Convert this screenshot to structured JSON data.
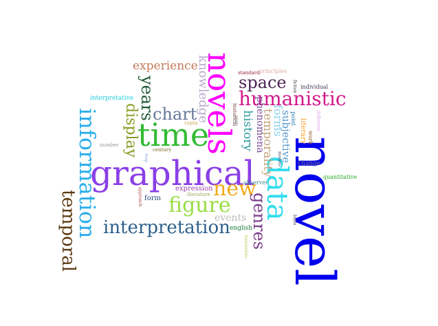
{
  "words": [
    {
      "text": "novel",
      "color": "#0000ee",
      "vertical": true
    },
    {
      "text": "novels",
      "color": "#ff00ff",
      "vertical": true
    },
    {
      "text": "graphical",
      "color": "#8a3fe6",
      "vertical": false
    },
    {
      "text": "time",
      "color": "#33bb33",
      "vertical": false
    },
    {
      "text": "data",
      "color": "#33ddee",
      "vertical": true
    },
    {
      "text": "information",
      "color": "#2aaeea",
      "vertical": true
    },
    {
      "text": "humanistic",
      "color": "#d2198c",
      "vertical": false
    },
    {
      "text": "interpretation",
      "color": "#2e5f8a",
      "vertical": false
    },
    {
      "text": "new",
      "color": "#f2aa1a",
      "vertical": false
    },
    {
      "text": "figure",
      "color": "#99dd44",
      "vertical": false
    },
    {
      "text": "temporal",
      "color": "#5c3a12",
      "vertical": true
    },
    {
      "text": "space",
      "color": "#4d2455",
      "vertical": false
    },
    {
      "text": "genres",
      "color": "#7a3b8a",
      "vertical": true
    },
    {
      "text": "chart",
      "color": "#667799",
      "vertical": false
    },
    {
      "text": "years",
      "color": "#225a37",
      "vertical": true
    },
    {
      "text": "display",
      "color": "#8a9a22",
      "vertical": true
    },
    {
      "text": "knowledge",
      "color": "#b8a9cc",
      "vertical": true
    },
    {
      "text": "experience",
      "color": "#c27a5a",
      "vertical": false
    },
    {
      "text": "history",
      "color": "#2a9a9a",
      "vertical": true
    },
    {
      "text": "temporality",
      "color": "#c2a37a",
      "vertical": true
    },
    {
      "text": "forms",
      "color": "#8ad0ee",
      "vertical": true
    },
    {
      "text": "subjective",
      "color": "#5599cc",
      "vertical": true
    },
    {
      "text": "phenomena",
      "color": "#7b4a9a",
      "vertical": true
    },
    {
      "text": "events",
      "color": "#bbbbbb",
      "vertical": false
    },
    {
      "text": "expression",
      "color": "#a044aa",
      "vertical": false
    },
    {
      "text": "form",
      "color": "#1f4a7a",
      "vertical": false
    },
    {
      "text": "english",
      "color": "#117a33",
      "vertical": false
    },
    {
      "text": "observer",
      "color": "#3a8a8a",
      "vertical": false
    },
    {
      "text": "literature",
      "color": "#9aa55a",
      "vertical": false
    },
    {
      "text": "historical",
      "color": "#774444",
      "vertical": true
    },
    {
      "text": "standard",
      "color": "#992244",
      "vertical": false
    },
    {
      "text": "principles",
      "color": "#ddaaaa",
      "vertical": false
    },
    {
      "text": "interpretative",
      "color": "#22ccdd",
      "vertical": false
    },
    {
      "text": "individual",
      "color": "#443355",
      "vertical": false
    },
    {
      "text": "literary",
      "color": "#ff9922",
      "vertical": true
    },
    {
      "text": "point",
      "color": "#2277aa",
      "vertical": true
    },
    {
      "text": "fiction",
      "color": "#333333",
      "vertical": true
    },
    {
      "text": "year",
      "color": "#555555",
      "vertical": true
    },
    {
      "text": "different",
      "color": "#ddaaee",
      "vertical": true
    },
    {
      "text": "work",
      "color": "#8a5522",
      "vertical": true
    },
    {
      "text": "change",
      "color": "#777777",
      "vertical": false
    },
    {
      "text": "quantitative",
      "color": "#22aa22",
      "vertical": false
    },
    {
      "text": "models",
      "color": "#334466",
      "vertical": true
    },
    {
      "text": "capta",
      "color": "#ccaa55",
      "vertical": false
    },
    {
      "text": "century",
      "color": "#7a6a22",
      "vertical": false
    },
    {
      "text": "number",
      "color": "#999999",
      "vertical": false
    },
    {
      "text": "map",
      "color": "#88aadd",
      "vertical": true
    },
    {
      "text": "approach",
      "color": "#aa4444",
      "vertical": true
    },
    {
      "text": "humanities",
      "color": "#bbcc55",
      "vertical": true
    },
    {
      "text": "basis",
      "color": "#443355",
      "vertical": true
    }
  ]
}
